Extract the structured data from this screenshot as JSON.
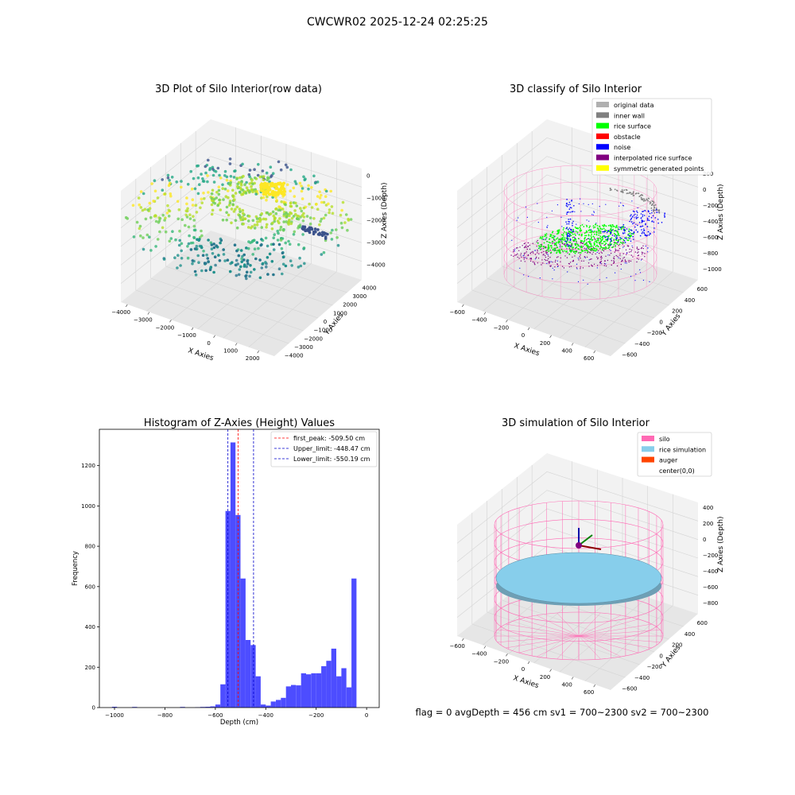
{
  "suptitle": "CWCWR02 2025-12-24 02:25:25",
  "status_line": "flag = 0     avgDepth = 456 cm  sv1 = 700~2300  sv2 = 700~2300",
  "colors": {
    "hist_bar": "#4d4dff",
    "peak_line": "#ff0000",
    "limit_line": "#0000cc",
    "silo": "#ff69b4",
    "rice_sim": "#87ceeb",
    "auger": "#ff4500",
    "rice_surface": "#00ff00",
    "noise": "#0000ff",
    "inner_wall": "#808080",
    "original": "#b0b0b0",
    "interpolated": "#800080",
    "symmetric": "#ffff00"
  },
  "chart_data": [
    {
      "type": "scatter",
      "title": "3D Plot of Silo Interior(row data)",
      "xlabel": "X Axies",
      "ylabel": "Y Axies",
      "zlabel": "Z Axies (Depth)",
      "x_ticks": [
        "−4000",
        "−3000",
        "−2000",
        "−1000",
        "0",
        "1000",
        "2000"
      ],
      "y_ticks": [
        "−4000",
        "−3000",
        "−2000",
        "−1000",
        "0",
        "1000",
        "2000",
        "3000",
        "4000"
      ],
      "z_ticks": [
        "0",
        "−1000",
        "−2000",
        "−3000",
        "−4000"
      ],
      "xlim": [
        -4500,
        2000
      ],
      "ylim": [
        -4000,
        4000
      ],
      "zlim": [
        -4000,
        0
      ]
    },
    {
      "type": "scatter",
      "title": "3D classify of Silo Interior",
      "xlabel": "X Axies",
      "ylabel": "Y Axies",
      "zlabel": "Z Axies (Depth)",
      "x_ticks": [
        "−600",
        "−400",
        "−200",
        "0",
        "200",
        "400",
        "600"
      ],
      "y_ticks": [
        "−600",
        "−400",
        "−200",
        "0",
        "200",
        "400",
        "600"
      ],
      "z_ticks": [
        "200",
        "0",
        "−200",
        "−400",
        "−600",
        "−800",
        "−1000"
      ],
      "legend": [
        {
          "label": "original data",
          "color": "#b0b0b0"
        },
        {
          "label": "inner wall",
          "color": "#808080"
        },
        {
          "label": "rice surface",
          "color": "#00ff00"
        },
        {
          "label": "obstacle",
          "color": "#ff0000"
        },
        {
          "label": "noise",
          "color": "#0000ff"
        },
        {
          "label": "interpolated rice surface",
          "color": "#800080"
        },
        {
          "label": "symmetric generated points",
          "color": "#ffff00"
        }
      ],
      "legend_loc": "top-right"
    },
    {
      "type": "bar",
      "title": "Histogram of Z-Axies (Height) Values",
      "xlabel": "Depth (cm)",
      "ylabel": "Frequency",
      "xlim": [
        -1060,
        50
      ],
      "ylim": [
        0,
        1380
      ],
      "x_ticks": [
        -1000,
        -800,
        -600,
        -400,
        -200,
        0
      ],
      "y_ticks": [
        0,
        200,
        400,
        600,
        800,
        1000,
        1200
      ],
      "bins": [
        {
          "x0": -1010,
          "x1": -990,
          "value": 4
        },
        {
          "x0": -930,
          "x1": -910,
          "value": 3
        },
        {
          "x0": -740,
          "x1": -720,
          "value": 3
        },
        {
          "x0": -680,
          "x1": -660,
          "value": 2
        },
        {
          "x0": -660,
          "x1": -640,
          "value": 3
        },
        {
          "x0": -640,
          "x1": -620,
          "value": 4
        },
        {
          "x0": -620,
          "x1": -600,
          "value": 6
        },
        {
          "x0": -600,
          "x1": -580,
          "value": 15
        },
        {
          "x0": -580,
          "x1": -560,
          "value": 115
        },
        {
          "x0": -560,
          "x1": -540,
          "value": 975
        },
        {
          "x0": -540,
          "x1": -520,
          "value": 1315
        },
        {
          "x0": -520,
          "x1": -500,
          "value": 955
        },
        {
          "x0": -500,
          "x1": -480,
          "value": 640
        },
        {
          "x0": -480,
          "x1": -460,
          "value": 335
        },
        {
          "x0": -460,
          "x1": -440,
          "value": 310
        },
        {
          "x0": -440,
          "x1": -420,
          "value": 155
        },
        {
          "x0": -420,
          "x1": -400,
          "value": 15
        },
        {
          "x0": -400,
          "x1": -380,
          "value": 10
        },
        {
          "x0": -380,
          "x1": -360,
          "value": 30
        },
        {
          "x0": -360,
          "x1": -340,
          "value": 38
        },
        {
          "x0": -340,
          "x1": -320,
          "value": 48
        },
        {
          "x0": -320,
          "x1": -300,
          "value": 105
        },
        {
          "x0": -300,
          "x1": -280,
          "value": 112
        },
        {
          "x0": -280,
          "x1": -260,
          "value": 110
        },
        {
          "x0": -260,
          "x1": -240,
          "value": 170
        },
        {
          "x0": -240,
          "x1": -220,
          "value": 165
        },
        {
          "x0": -220,
          "x1": -200,
          "value": 170
        },
        {
          "x0": -200,
          "x1": -180,
          "value": 170
        },
        {
          "x0": -180,
          "x1": -160,
          "value": 205
        },
        {
          "x0": -160,
          "x1": -140,
          "value": 232
        },
        {
          "x0": -140,
          "x1": -120,
          "value": 292
        },
        {
          "x0": -120,
          "x1": -100,
          "value": 155
        },
        {
          "x0": -100,
          "x1": -80,
          "value": 195
        },
        {
          "x0": -80,
          "x1": -60,
          "value": 100
        },
        {
          "x0": -60,
          "x1": -40,
          "value": 640
        }
      ],
      "vlines": [
        {
          "label": "first_peak: -509.50 cm",
          "x": -509.5,
          "color": "#ff0000"
        },
        {
          "label": "Upper_limit: -448.47 cm",
          "x": -448.47,
          "color": "#0000cc"
        },
        {
          "label": "Lower_limit: -550.19 cm",
          "x": -550.19,
          "color": "#0000cc"
        }
      ],
      "legend_loc": "top-right"
    },
    {
      "type": "scatter",
      "title": "3D simulation of Silo Interior",
      "xlabel": "X Axies",
      "ylabel": "Y Axies",
      "zlabel": "Z Axies (Depth)",
      "x_ticks": [
        "−600",
        "−400",
        "−200",
        "0",
        "200",
        "400",
        "600"
      ],
      "y_ticks": [
        "−600",
        "−400",
        "−200",
        "0",
        "200",
        "400",
        "600"
      ],
      "z_ticks": [
        "400",
        "200",
        "0",
        "−200",
        "−400",
        "−600",
        "−800"
      ],
      "legend": [
        {
          "label": "silo",
          "color": "#ff69b4"
        },
        {
          "label": "rice simulation",
          "color": "#87ceeb"
        },
        {
          "label": "auger",
          "color": "#ff4500"
        },
        {
          "label": "center(0,0)",
          "color": ""
        }
      ],
      "legend_loc": "top-right"
    }
  ]
}
